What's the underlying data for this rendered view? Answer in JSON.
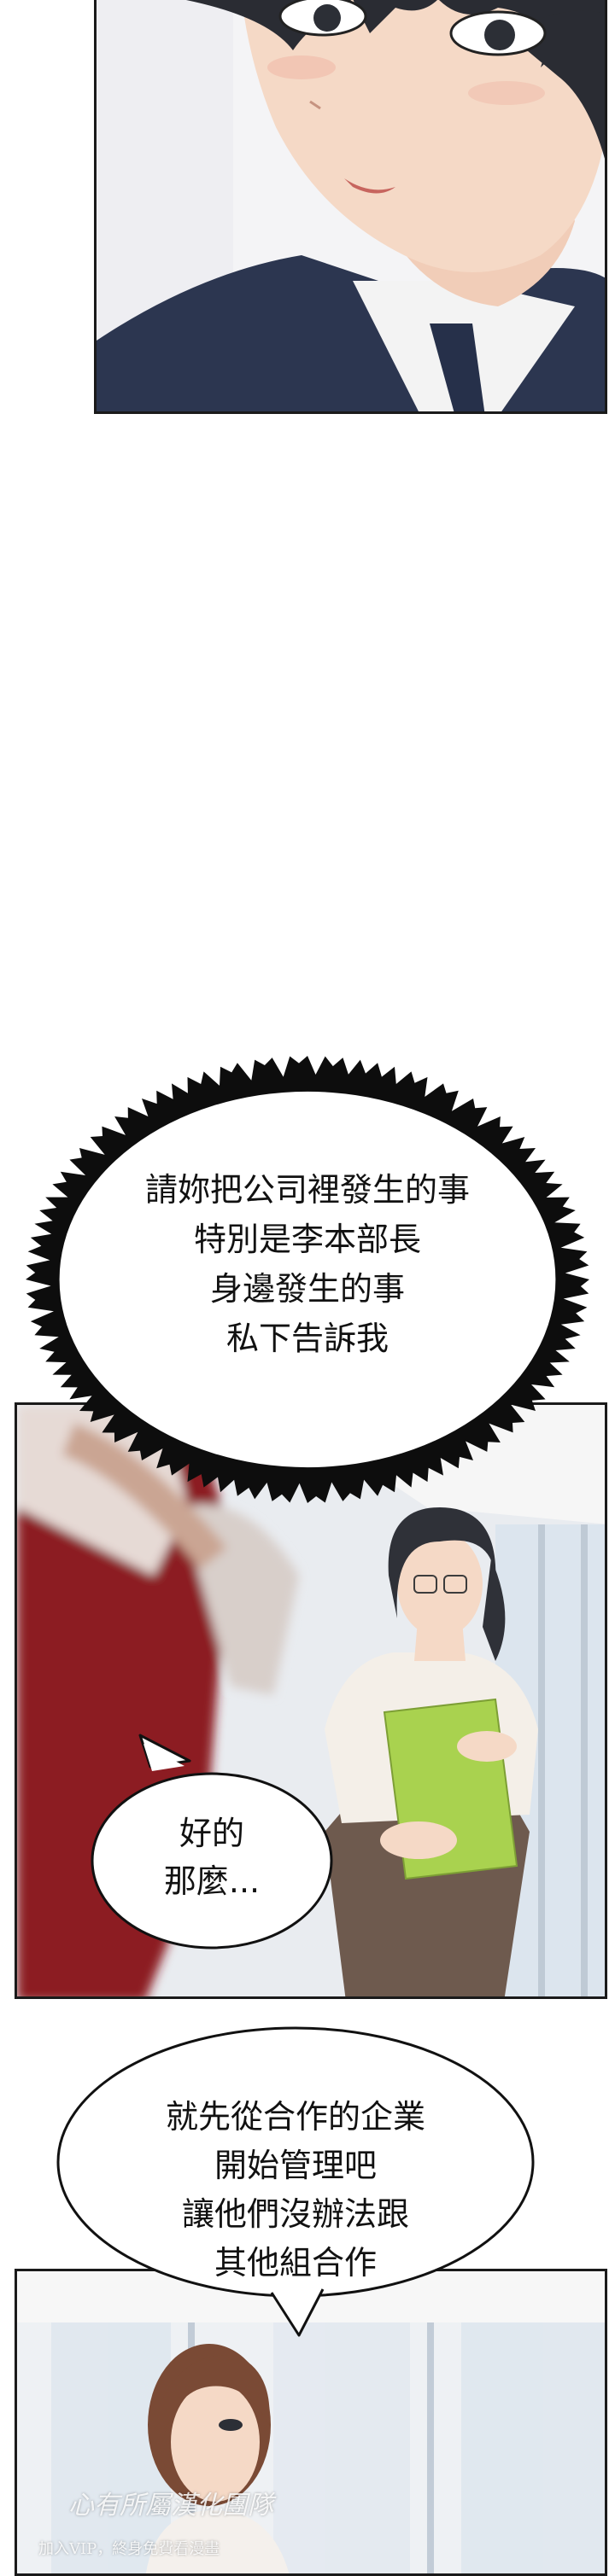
{
  "speech_bubbles": {
    "dark_thought": {
      "lines": [
        "請妳把公司裡發生的事",
        "特別是李本部長",
        "身邊發生的事",
        "私下告訴我"
      ]
    },
    "reply": {
      "lines": [
        "好的",
        "那麼..."
      ]
    },
    "instruction": {
      "lines": [
        "就先從合作的企業",
        "開始管理吧",
        "讓他們沒辦法跟",
        "其他組合作"
      ]
    }
  },
  "watermark": {
    "group_name": "心有所屬漢化團隊",
    "promo": "加入VIP，終身免費看漫畫"
  },
  "colors": {
    "suit": "#2c3650",
    "skin": "#f5d9c6",
    "hair": "#2a2c33",
    "red_dress": "#8c1d22",
    "folder": "#a9d24f",
    "skirt": "#6e5a4e"
  }
}
